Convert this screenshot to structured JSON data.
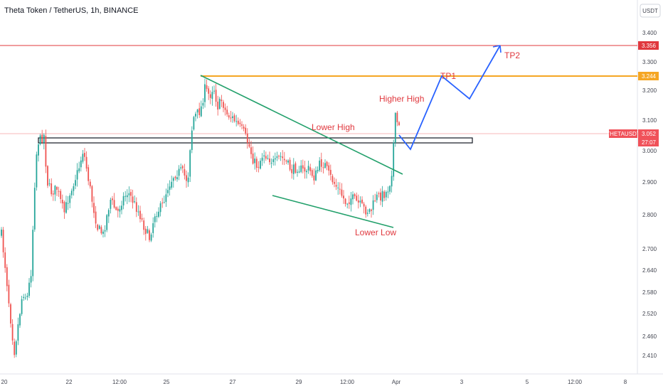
{
  "header": {
    "title": "Theta Token / TetherUS, 1h, BINANCE"
  },
  "currency_badge": "USDT",
  "chart_data": {
    "type": "candlestick",
    "y_scale": "log",
    "ylim": [
      2.38,
      3.47
    ],
    "price_ticks": [
      "3.400",
      "3.300",
      "3.200",
      "3.100",
      "3.000",
      "2.900",
      "2.800",
      "2.700",
      "2.640",
      "2.580",
      "2.520",
      "2.460",
      "2.410"
    ],
    "x_ticks": [
      "20",
      "22",
      "12:00",
      "25",
      "27",
      "29",
      "12:00",
      "Apr",
      "3",
      "5",
      "12:00",
      "8"
    ],
    "price_tags": [
      {
        "label": "3.356",
        "color": "#e0383e"
      },
      {
        "label": "3.244",
        "color": "#f5a623"
      }
    ],
    "symbol_tag": {
      "symbol": "THETAUSDT",
      "price": "3.052",
      "countdown": "27:07",
      "color": "#f0525a"
    },
    "horizontal_levels": [
      {
        "name": "tp2-level",
        "price": 3.356,
        "color": "#e0383e"
      },
      {
        "name": "tp1-level",
        "price": 3.244,
        "color": "#f5a623"
      },
      {
        "name": "current-price-line",
        "price": 3.052,
        "color": "#f7b7ba"
      }
    ],
    "annotations": {
      "higher_high": "Higher High",
      "lower_high": "Lower High",
      "lower_low": "Lower Low",
      "tp1": "TP1",
      "tp2": "TP2"
    },
    "colors": {
      "up": "#26a69a",
      "down": "#ef5350",
      "trendline": "#22a06b",
      "projection": "#2962ff",
      "annotation": "#e0383e"
    }
  }
}
